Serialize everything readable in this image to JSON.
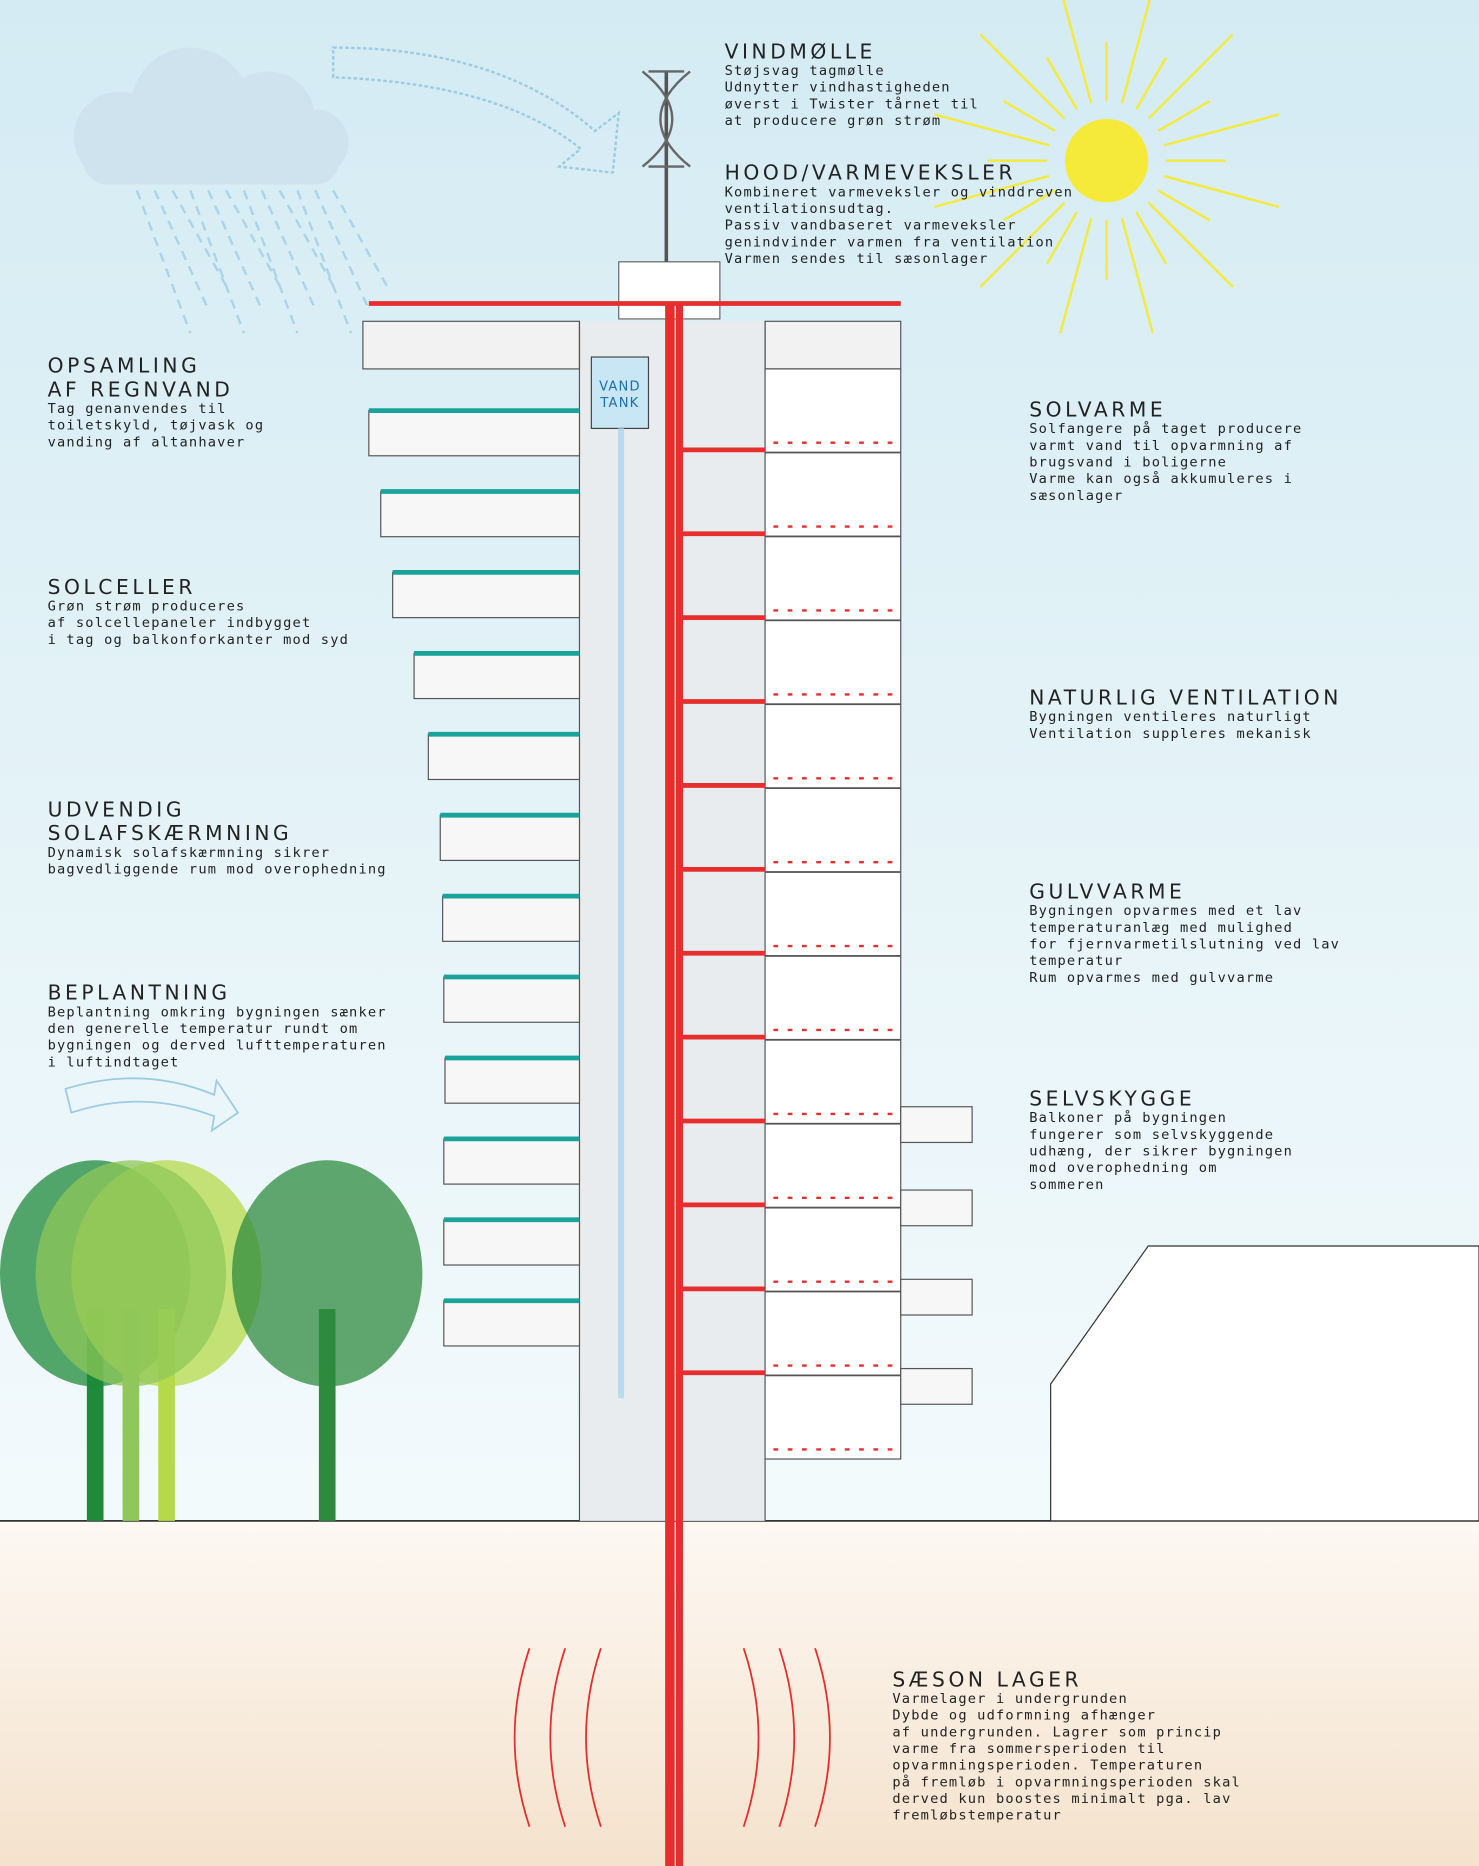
{
  "labels": [
    {
      "title": [
        "VINDMØLLE"
      ],
      "lines": [
        "Støjsvag tagmølle",
        "Udnytter vindhastigheden",
        "øverst i Twister tårnet til",
        "at producere grøn strøm"
      ]
    },
    {
      "title": [
        "HOOD/VARMEVEKSLER"
      ],
      "lines": [
        "Kombineret varmeveksler og vinddreven",
        "ventilationsudtag.",
        "Passiv vandbaseret varmeveksler",
        "genindvinder varmen fra ventilation",
        "Varmen sendes til sæsonlager"
      ]
    },
    {
      "title": [
        "OPSAMLING",
        "AF REGNVAND"
      ],
      "lines": [
        "Tag genanvendes til",
        "toiletskyld, tøjvask og",
        "vanding af altanhaver"
      ]
    },
    {
      "title": [
        "SOLCELLER"
      ],
      "lines": [
        "Grøn strøm produceres",
        "af solcellepaneler indbygget",
        "i tag og balkonforkanter mod syd"
      ]
    },
    {
      "title": [
        "UDVENDIG",
        "SOLAFSKÆRMNING"
      ],
      "lines": [
        "Dynamisk solafskærmning sikrer",
        "bagvedliggende rum mod overophedning"
      ]
    },
    {
      "title": [
        "BEPLANTNING"
      ],
      "lines": [
        "Beplantning omkring bygningen sænker",
        "den generelle temperatur rundt om",
        "bygningen og derved lufttemperaturen",
        "i luftindtaget"
      ]
    },
    {
      "title": [
        "SOLVARME"
      ],
      "lines": [
        "Solfangere på taget producere",
        "varmt vand til opvarmning af",
        "brugsvand i boligerne",
        "Varme kan også akkumuleres i",
        "sæsonlager"
      ]
    },
    {
      "title": [
        "NATURLIG VENTILATION"
      ],
      "lines": [
        "Bygningen ventileres naturligt",
        "Ventilation suppleres mekanisk"
      ]
    },
    {
      "title": [
        "GULVVARME"
      ],
      "lines": [
        "Bygningen opvarmes med et lav",
        "temperaturanlæg med mulighed",
        "for fjernvarmetilslutning ved lav",
        "temperatur",
        "Rum opvarmes med gulvvarme"
      ]
    },
    {
      "title": [
        "SELVSKYGGE"
      ],
      "lines": [
        "Balkoner på bygningen",
        "fungerer som selvskyggende",
        "udhæng, der sikrer bygningen",
        "mod overophedning om",
        "sommeren"
      ]
    },
    {
      "title": [
        "SÆSON LAGER"
      ],
      "lines": [
        "Varmelager i undergrunden",
        "Dybde og udformning afhænger",
        "af undergrunden. Lagrer som princip",
        "varme fra sommersperioden til",
        "opvarmningsperioden. Temperaturen",
        "på fremløb i opvarmningsperioden skal",
        "derved kun boostes minimalt pga. lav",
        "fremløbstemperatur"
      ]
    }
  ],
  "tank": [
    "VAND",
    "TANK"
  ]
}
